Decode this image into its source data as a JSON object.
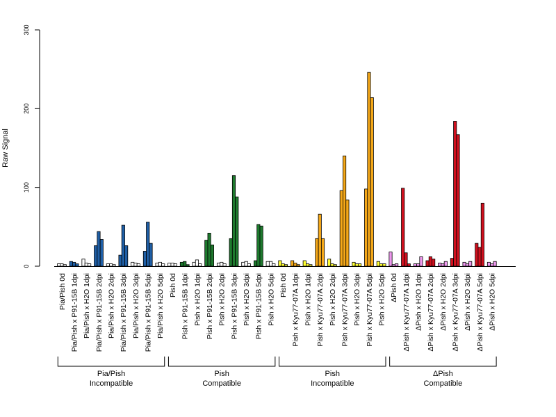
{
  "chart_data": {
    "type": "bar",
    "ylabel": "Raw Signal",
    "ylim": [
      0,
      300
    ],
    "y_ticks": [
      "0",
      "100",
      "200",
      "300"
    ],
    "bars_per_category": 3,
    "categories": [
      "Pia/Pish 0d",
      "Pia/Pish x P91-15B 1dpi",
      "Pia/Pish x H2O 1dpi",
      "Pia/Pish x P91-15B 2dpi",
      "Pia/Pish x H2O 2dpi",
      "Pia/Pish x P91-15B 3dpi",
      "Pia/Pish x H2O 3dpi",
      "Pia/Pish x P91-15B 5dpi",
      "Pia/Pish x H2O 5dpi",
      "Pish 0d",
      "Pish x P91-15B 1dpi",
      "Pish x H2O 1dpi",
      "Pish x P91-15B 2dpi",
      "Pish x H2O 2dpi",
      "Pish x P91-15B 3dpi",
      "Pish x H2O 3dpi",
      "Pish x P91-15B 5dpi",
      "Pish x H2O 5dpi",
      "Pish 0d",
      "Pish x Kyu77-07A 1dpi",
      "Pish x H2O 1dpi",
      "Pish x Kyu77-07A 2dpi",
      "Pish x H2O 2dpi",
      "Pish x Kyu77-07A 3dpi",
      "Pish x H2O 3dpi",
      "Pish x Kyu77-07A 5dpi",
      "Pish x H2O 5dpi",
      "ΔPish 0d",
      "ΔPish x Kyu77-07A 1dpi",
      "ΔPish x H2O 1dpi",
      "ΔPish x Kyu77-07A 2dpi",
      "ΔPish x H2O 2dpi",
      "ΔPish x Kyu77-07A 3dpi",
      "ΔPish x H2O 3dpi",
      "ΔPish x Kyu77-07A 5dpi",
      "ΔPish x H2O 5dpi"
    ],
    "values": [
      [
        3,
        3,
        2
      ],
      [
        6,
        5,
        3
      ],
      [
        9,
        4,
        3
      ],
      [
        26,
        44,
        34
      ],
      [
        3,
        3,
        2
      ],
      [
        14,
        52,
        26
      ],
      [
        5,
        4,
        3
      ],
      [
        19,
        56,
        29
      ],
      [
        4,
        5,
        3
      ],
      [
        4,
        4,
        3
      ],
      [
        5,
        6,
        2
      ],
      [
        5,
        8,
        3
      ],
      [
        33,
        42,
        27
      ],
      [
        4,
        5,
        3
      ],
      [
        35,
        115,
        88
      ],
      [
        5,
        6,
        3
      ],
      [
        7,
        53,
        51
      ],
      [
        6,
        6,
        3
      ],
      [
        7,
        3,
        2
      ],
      [
        7,
        4,
        2
      ],
      [
        7,
        3,
        2
      ],
      [
        35,
        66,
        35
      ],
      [
        9,
        3,
        2
      ],
      [
        96,
        140,
        84
      ],
      [
        5,
        3,
        3
      ],
      [
        98,
        246,
        214
      ],
      [
        6,
        3,
        3
      ],
      [
        18,
        2,
        3
      ],
      [
        99,
        17,
        3
      ],
      [
        3,
        3,
        12
      ],
      [
        7,
        12,
        9
      ],
      [
        4,
        3,
        6
      ],
      [
        10,
        184,
        167
      ],
      [
        5,
        3,
        6
      ],
      [
        29,
        24,
        80
      ],
      [
        5,
        3,
        6
      ]
    ],
    "bar_colors": [
      "#ffffff",
      "#1f5fa6",
      "#ffffff",
      "#1f5fa6",
      "#ffffff",
      "#1f5fa6",
      "#ffffff",
      "#1f5fa6",
      "#ffffff",
      "#ffffff",
      "#1e7a2e",
      "#ffffff",
      "#1e7a2e",
      "#ffffff",
      "#1e7a2e",
      "#ffffff",
      "#1e7a2e",
      "#ffffff",
      "#ffff33",
      "#f5a818",
      "#ffff33",
      "#f5a818",
      "#ffff33",
      "#f5a818",
      "#ffff33",
      "#f5a818",
      "#ffff33",
      "#ee99ee",
      "#d0101e",
      "#ee99ee",
      "#d0101e",
      "#ee99ee",
      "#d0101e",
      "#ee99ee",
      "#d0101e",
      "#ee99ee"
    ],
    "groups": [
      {
        "line1": "Pia/Pish",
        "line2": "Incompatible",
        "start": 0,
        "end": 8
      },
      {
        "line1": "Pish",
        "line2": "Compatible",
        "start": 9,
        "end": 17
      },
      {
        "line1": "Pish",
        "line2": "Incompatible",
        "start": 18,
        "end": 26
      },
      {
        "line1": "ΔPish",
        "line2": "Compatible",
        "start": 27,
        "end": 35
      }
    ]
  }
}
